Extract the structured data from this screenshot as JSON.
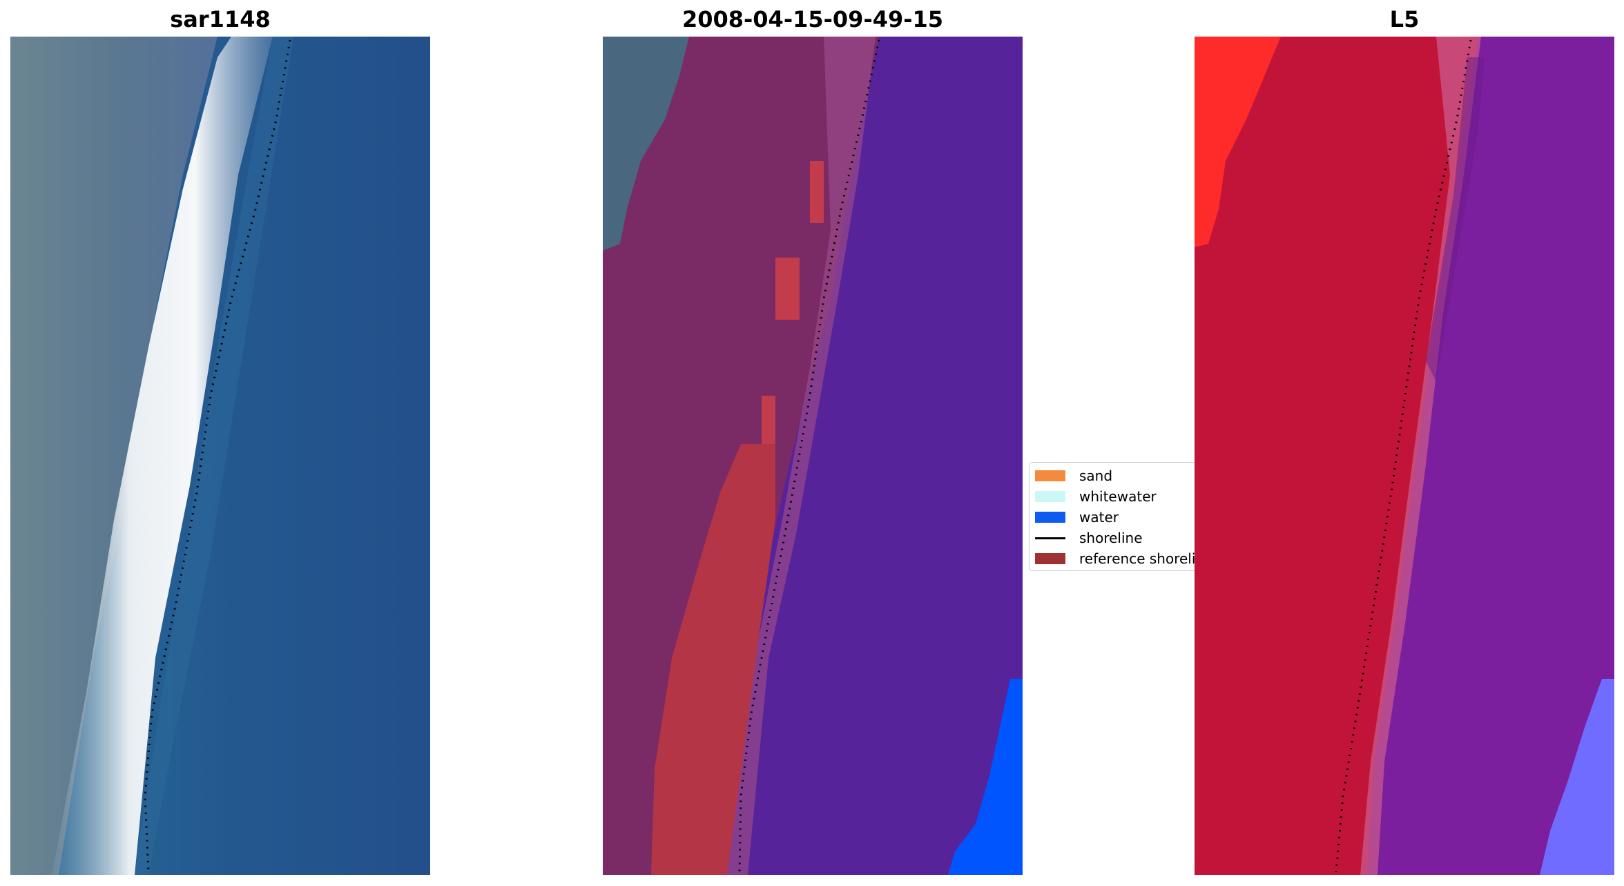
{
  "panels": {
    "left": {
      "title": "sar1148"
    },
    "center": {
      "title": "2008-04-15-09-49-15"
    },
    "right": {
      "title": "L5"
    }
  },
  "legend": {
    "items": [
      {
        "label": "sand",
        "color": "#f28c3c",
        "kind": "patch"
      },
      {
        "label": "whitewater",
        "color": "#ccf7f7",
        "kind": "patch"
      },
      {
        "label": "water",
        "color": "#0d5cf2",
        "kind": "patch"
      },
      {
        "label": "shoreline",
        "color": "#000000",
        "kind": "line"
      },
      {
        "label": "reference shoreline",
        "color": "#9e3131",
        "kind": "patch"
      }
    ]
  },
  "colors": {
    "rgb_land": "#5d7a8c",
    "rgb_water": "#24578f",
    "rgb_surf": "#eef2f4",
    "class_land": "#7a2a64",
    "class_water": "#56239a",
    "class_ref": "#b43646",
    "class_water_blue": "#0055ff",
    "ndvi_red": "#c21439",
    "ndvi_purple": "#7c1f9e",
    "ndvi_blue": "#6f6cff",
    "shoreline": "#000000"
  }
}
